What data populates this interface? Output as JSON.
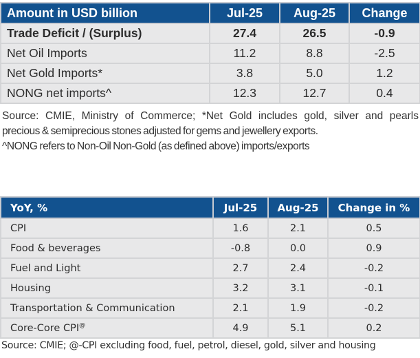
{
  "trade_table": {
    "headers": [
      "Amount in USD billion",
      "Jul-25",
      "Aug-25",
      "Change"
    ],
    "rows": [
      {
        "label": "Trade Deficit / (Surplus)",
        "jul": "27.4",
        "aug": "26.5",
        "change": "-0.9",
        "bold": true
      },
      {
        "label": "Net Oil Imports",
        "jul": "11.2",
        "aug": "8.8",
        "change": "-2.5",
        "bold": false
      },
      {
        "label": "Net Gold Imports*",
        "jul": "3.8",
        "aug": "5.0",
        "change": "1.2",
        "bold": false
      },
      {
        "label": "NONG net imports^",
        "jul": "12.3",
        "aug": "12.7",
        "change": "0.4",
        "bold": false
      }
    ],
    "notes": [
      "Source: CMIE, Ministry of Commerce; *Net Gold includes gold, silver and pearls",
      "precious & semiprecious stones adjusted for gems and jewellery exports.",
      "^NONG refers to Non-Oil Non-Gold (as defined above) imports/exports"
    ]
  },
  "cpi_table": {
    "headers": [
      "YoY, %",
      "Jul-25",
      "Aug-25",
      "Change in %"
    ],
    "rows": [
      {
        "label": "CPI",
        "sup": "",
        "jul": "1.6",
        "aug": "2.1",
        "change": "0.5"
      },
      {
        "label": "Food & beverages",
        "sup": "",
        "jul": "-0.8",
        "aug": "0.0",
        "change": "0.9"
      },
      {
        "label": "Fuel and Light",
        "sup": "",
        "jul": "2.7",
        "aug": "2.4",
        "change": "-0.2"
      },
      {
        "label": "Housing",
        "sup": "",
        "jul": "3.2",
        "aug": "3.1",
        "change": "-0.1"
      },
      {
        "label": "Transportation & Communication",
        "sup": "",
        "jul": "2.1",
        "aug": "1.9",
        "change": "-0.2"
      },
      {
        "label": "Core-Core CPI",
        "sup": "@",
        "jul": "4.9",
        "aug": "5.1",
        "change": "0.2"
      }
    ],
    "note": "Source: CMIE; @-CPI excluding food, fuel, petrol, diesel, gold, silver and housing"
  },
  "colors": {
    "header_bg": "#12528f",
    "row_bg": "#e8e8e9",
    "border": "#d3d4d6"
  }
}
